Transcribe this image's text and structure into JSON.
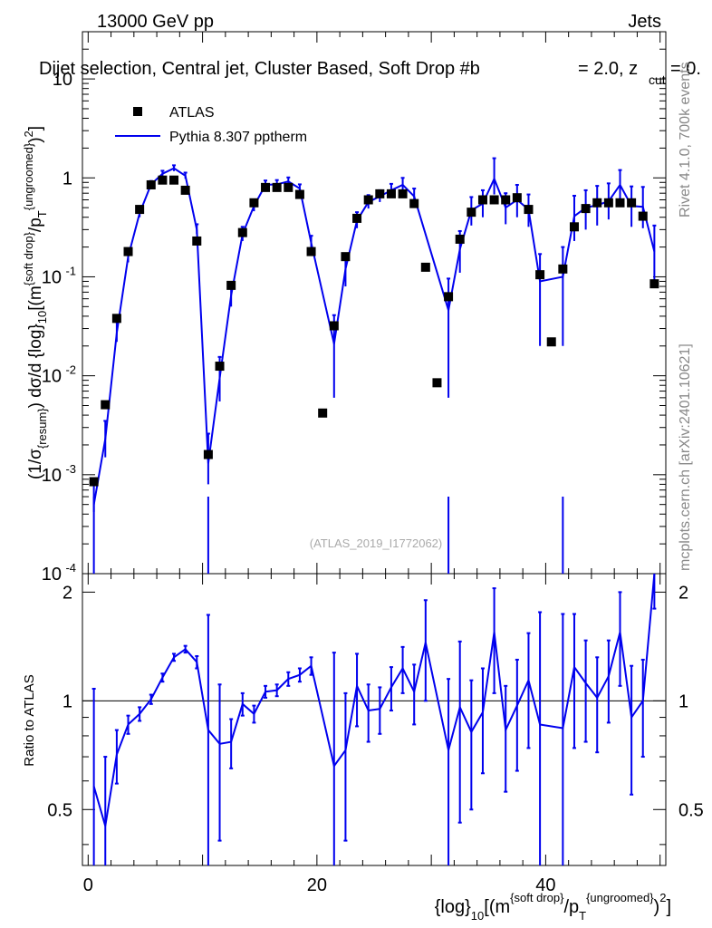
{
  "header": {
    "left": "13000 GeV pp",
    "right": "Jets",
    "subtitle": "Dijet selection, Central jet, Cluster Based, Soft Drop #b",
    "subtitle_mid": "= 2.0, z",
    "subtitle_sub": "cut",
    "subtitle_end": "= 0.",
    "watermark": "(ATLAS_2019_I1772062)",
    "side_right": "Rivet 4.1.0,  700k events",
    "side_right2": "mcplots.cern.ch [arXiv:2401.10621]"
  },
  "axes": {
    "ylabel_main": "(1/σ{resum}) dσ/d {log}10[(m{soft drop}/pT{ungroomed})2]",
    "ylabel_ratio": "Ratio to ATLAS",
    "xlabel": "{log}10[(m{soft drop}/pT{ungroomed})2]"
  },
  "legend": {
    "data_label": "ATLAS",
    "mc_label": "Pythia 8.307 pptherm"
  },
  "colors": {
    "mc": "#0000ee",
    "data": "#000000"
  },
  "chart_data": {
    "type": "scatter",
    "xlim": [
      -0.5,
      50.5
    ],
    "ylim_main": [
      0.0001,
      30
    ],
    "ylim_ratio": [
      0.35,
      2.25
    ],
    "x_ticks": [
      0,
      20,
      40
    ],
    "y_ticks_main": [
      "10^-4",
      "10^-3",
      "10^-2",
      "10^-1",
      "1",
      "10"
    ],
    "y_ticks_ratio": [
      0.5,
      1,
      2
    ],
    "data_x": [
      0.5,
      1.5,
      2.5,
      3.5,
      4.5,
      5.5,
      6.5,
      7.5,
      8.5,
      9.5,
      10.5,
      11.5,
      12.5,
      13.5,
      14.5,
      15.5,
      16.5,
      17.5,
      18.5,
      19.5,
      20.5,
      21.5,
      22.5,
      23.5,
      24.5,
      25.5,
      26.5,
      27.5,
      28.5,
      29.5,
      30.5,
      31.5,
      32.5,
      33.5,
      34.5,
      35.5,
      36.5,
      37.5,
      38.5,
      39.5,
      40.5,
      41.5,
      42.5,
      43.5,
      44.5,
      45.5,
      46.5,
      47.5,
      48.5,
      49.5
    ],
    "data_y": [
      0.00085,
      0.0051,
      0.038,
      0.18,
      0.48,
      0.85,
      0.95,
      0.95,
      0.75,
      0.23,
      0.0016,
      0.0125,
      0.082,
      0.28,
      0.56,
      0.8,
      0.8,
      0.8,
      0.68,
      0.18,
      0.0042,
      0.032,
      0.16,
      0.39,
      0.6,
      0.69,
      0.69,
      0.69,
      0.55,
      0.125,
      0.0085,
      0.063,
      0.24,
      0.45,
      0.6,
      0.6,
      0.6,
      0.63,
      0.48,
      0.105,
      0.022,
      0.12,
      0.32,
      0.49,
      0.56,
      0.56,
      0.56,
      0.56,
      0.41,
      0.085
    ],
    "mc_x": [
      0.5,
      1.5,
      2.5,
      3.5,
      4.5,
      5.5,
      6.5,
      7.5,
      8.5,
      9.5,
      10.5,
      11.5,
      12.5,
      13.5,
      14.5,
      15.5,
      16.5,
      17.5,
      18.5,
      19.5,
      21.5,
      22.5,
      23.5,
      24.5,
      25.5,
      26.5,
      27.5,
      28.5,
      31.5,
      32.5,
      33.5,
      34.5,
      35.5,
      36.5,
      37.5,
      38.5,
      39.5,
      41.5,
      42.5,
      43.5,
      44.5,
      45.5,
      46.5,
      47.5,
      48.5,
      49.5
    ],
    "mc_y": [
      0.0005,
      0.0023,
      0.027,
      0.16,
      0.44,
      0.86,
      1.1,
      1.25,
      1.05,
      0.3,
      0.0013,
      0.0095,
      0.065,
      0.27,
      0.52,
      0.85,
      0.86,
      0.92,
      0.78,
      0.22,
      0.021,
      0.12,
      0.37,
      0.57,
      0.65,
      0.75,
      0.85,
      0.65,
      0.046,
      0.19,
      0.47,
      0.55,
      0.98,
      0.5,
      0.6,
      0.48,
      0.09,
      0.1,
      0.41,
      0.5,
      0.53,
      0.58,
      0.85,
      0.52,
      0.51,
      0.18
    ],
    "mc_err_lo": [
      8e-05,
      0.0008,
      0.005,
      0.02,
      0.04,
      0.06,
      0.07,
      0.08,
      0.07,
      0.03,
      0.0005,
      0.004,
      0.015,
      0.04,
      0.06,
      0.08,
      0.08,
      0.08,
      0.07,
      0.03,
      0.015,
      0.04,
      0.06,
      0.08,
      0.08,
      0.09,
      0.12,
      0.1,
      0.04,
      0.08,
      0.14,
      0.15,
      0.3,
      0.16,
      0.2,
      0.16,
      0.07,
      0.08,
      0.18,
      0.2,
      0.2,
      0.2,
      0.3,
      0.2,
      0.2,
      0.1
    ],
    "mc_err_hi": [
      0.0004,
      0.0012,
      0.008,
      0.03,
      0.05,
      0.07,
      0.08,
      0.09,
      0.08,
      0.04,
      0.0013,
      0.006,
      0.02,
      0.05,
      0.07,
      0.09,
      0.09,
      0.09,
      0.08,
      0.04,
      0.02,
      0.05,
      0.08,
      0.1,
      0.1,
      0.12,
      0.15,
      0.13,
      0.05,
      0.1,
      0.17,
      0.2,
      0.6,
      0.2,
      0.25,
      0.2,
      0.08,
      0.1,
      0.25,
      0.25,
      0.3,
      0.3,
      0.35,
      0.3,
      0.3,
      0.15
    ],
    "ratio_x": [
      0.5,
      1.5,
      2.5,
      3.5,
      4.5,
      5.5,
      6.5,
      7.5,
      8.5,
      9.5,
      10.5,
      11.5,
      12.5,
      13.5,
      14.5,
      15.5,
      16.5,
      17.5,
      18.5,
      19.5,
      21.5,
      22.5,
      23.5,
      24.5,
      25.5,
      26.5,
      27.5,
      28.5,
      29.5,
      31.5,
      32.5,
      33.5,
      34.5,
      35.5,
      36.5,
      37.5,
      38.5,
      39.5,
      41.5,
      42.5,
      43.5,
      44.5,
      45.5,
      46.5,
      47.5,
      48.5,
      49.5
    ],
    "ratio_y": [
      0.58,
      0.45,
      0.71,
      0.86,
      0.92,
      1.01,
      1.16,
      1.32,
      1.39,
      1.28,
      0.83,
      0.76,
      0.77,
      0.98,
      0.92,
      1.06,
      1.07,
      1.15,
      1.18,
      1.25,
      0.66,
      0.73,
      1.1,
      0.94,
      0.95,
      1.09,
      1.23,
      1.06,
      1.45,
      0.73,
      0.96,
      0.82,
      0.93,
      1.55,
      0.83,
      0.97,
      1.14,
      0.86,
      0.84,
      1.24,
      1.12,
      1.02,
      1.17,
      1.55,
      0.9,
      1.0,
      2.25
    ],
    "ratio_err": [
      0.5,
      0.25,
      0.12,
      0.05,
      0.04,
      0.03,
      0.03,
      0.03,
      0.03,
      0.05,
      0.9,
      0.35,
      0.12,
      0.07,
      0.05,
      0.04,
      0.04,
      0.05,
      0.05,
      0.07,
      0.7,
      0.32,
      0.25,
      0.17,
      0.14,
      0.15,
      0.18,
      0.2,
      0.45,
      0.42,
      0.5,
      0.32,
      0.3,
      0.5,
      0.27,
      0.33,
      0.4,
      0.9,
      0.9,
      0.5,
      0.35,
      0.3,
      0.3,
      0.45,
      0.35,
      0.3,
      0.45
    ]
  }
}
